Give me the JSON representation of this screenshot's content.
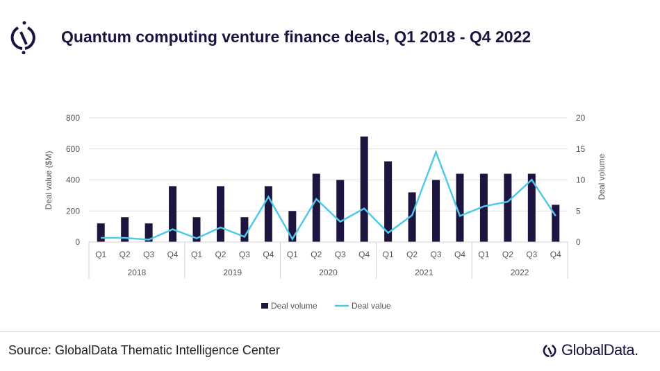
{
  "header": {
    "title": "Quantum computing venture finance deals, Q1 2018 - Q4 2022"
  },
  "footer": {
    "source": "Source: GlobalData Thematic Intelligence Center",
    "brand": "GlobalData."
  },
  "colors": {
    "bars": "#1e1440",
    "line": "#4fc8ea",
    "title": "#1a1240"
  },
  "chart_data": {
    "type": "bar+line",
    "title": "",
    "categories": [
      "Q1",
      "Q2",
      "Q3",
      "Q4",
      "Q1",
      "Q2",
      "Q3",
      "Q4",
      "Q1",
      "Q2",
      "Q3",
      "Q4",
      "Q1",
      "Q2",
      "Q3",
      "Q4",
      "Q1",
      "Q2",
      "Q3",
      "Q4"
    ],
    "groups": [
      "2018",
      "2019",
      "2020",
      "2021",
      "2022"
    ],
    "ylabel_left": "Deal value ($M)",
    "ylabel_right": "Deal volume",
    "ylim_left": [
      0,
      800
    ],
    "ylim_right": [
      0,
      20
    ],
    "yticks_left": [
      "0",
      "200",
      "400",
      "600",
      "800"
    ],
    "yticks_right": [
      "0",
      "5",
      "10",
      "15",
      "20"
    ],
    "grid": true,
    "legend": "bottom",
    "series": [
      {
        "name": "Deal volume",
        "type": "bar",
        "axis": "right",
        "values": [
          3,
          4,
          3,
          9,
          4,
          9,
          4,
          9,
          5,
          11,
          10,
          17,
          13,
          8,
          10,
          11,
          11,
          11,
          11,
          6
        ]
      },
      {
        "name": "Deal value",
        "type": "line",
        "axis": "left",
        "values": [
          27,
          27,
          15,
          82,
          24,
          94,
          34,
          291,
          19,
          277,
          131,
          216,
          59,
          172,
          580,
          168,
          230,
          260,
          401,
          168
        ]
      }
    ]
  }
}
